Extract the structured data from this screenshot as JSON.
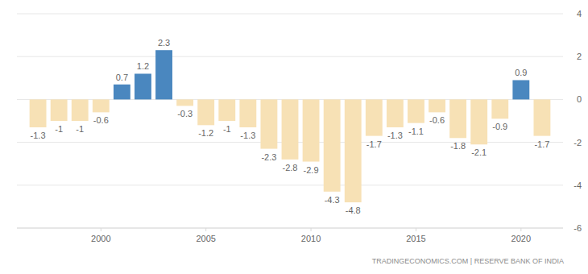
{
  "chart_data": {
    "type": "bar",
    "x": [
      1997,
      1998,
      1999,
      2000,
      2001,
      2002,
      2003,
      2004,
      2005,
      2006,
      2007,
      2008,
      2009,
      2010,
      2011,
      2012,
      2013,
      2014,
      2015,
      2016,
      2017,
      2018,
      2019,
      2020,
      2021
    ],
    "values": [
      -1.3,
      -1,
      -1,
      -0.6,
      0.7,
      1.2,
      2.3,
      -0.3,
      -1.2,
      -1,
      -1.3,
      -2.3,
      -2.8,
      -2.9,
      -4.3,
      -4.8,
      -1.7,
      -1.3,
      -1.1,
      -0.6,
      -1.8,
      -2.1,
      -0.9,
      0.9,
      -1.7
    ],
    "colors": [
      "#f7e1b5",
      "#f7e1b5",
      "#f7e1b5",
      "#f7e1b5",
      "#4a87bf",
      "#4a87bf",
      "#4a87bf",
      "#f7e1b5",
      "#f7e1b5",
      "#f7e1b5",
      "#f7e1b5",
      "#f7e1b5",
      "#f7e1b5",
      "#f7e1b5",
      "#f7e1b5",
      "#f7e1b5",
      "#f7e1b5",
      "#f7e1b5",
      "#f7e1b5",
      "#f7e1b5",
      "#f7e1b5",
      "#f7e1b5",
      "#f7e1b5",
      "#4a87bf",
      "#f7e1b5"
    ],
    "xlim": [
      1996,
      2022
    ],
    "xticks": [
      2000,
      2005,
      2010,
      2015,
      2020
    ],
    "ylim": [
      -6,
      4
    ],
    "yticks": [
      -6,
      -4,
      -2,
      0,
      2,
      4
    ],
    "grid": true,
    "data_labels": true,
    "annotations": [
      "TRADINGECONOMICS.COM | RESERVE BANK OF INDIA"
    ]
  }
}
